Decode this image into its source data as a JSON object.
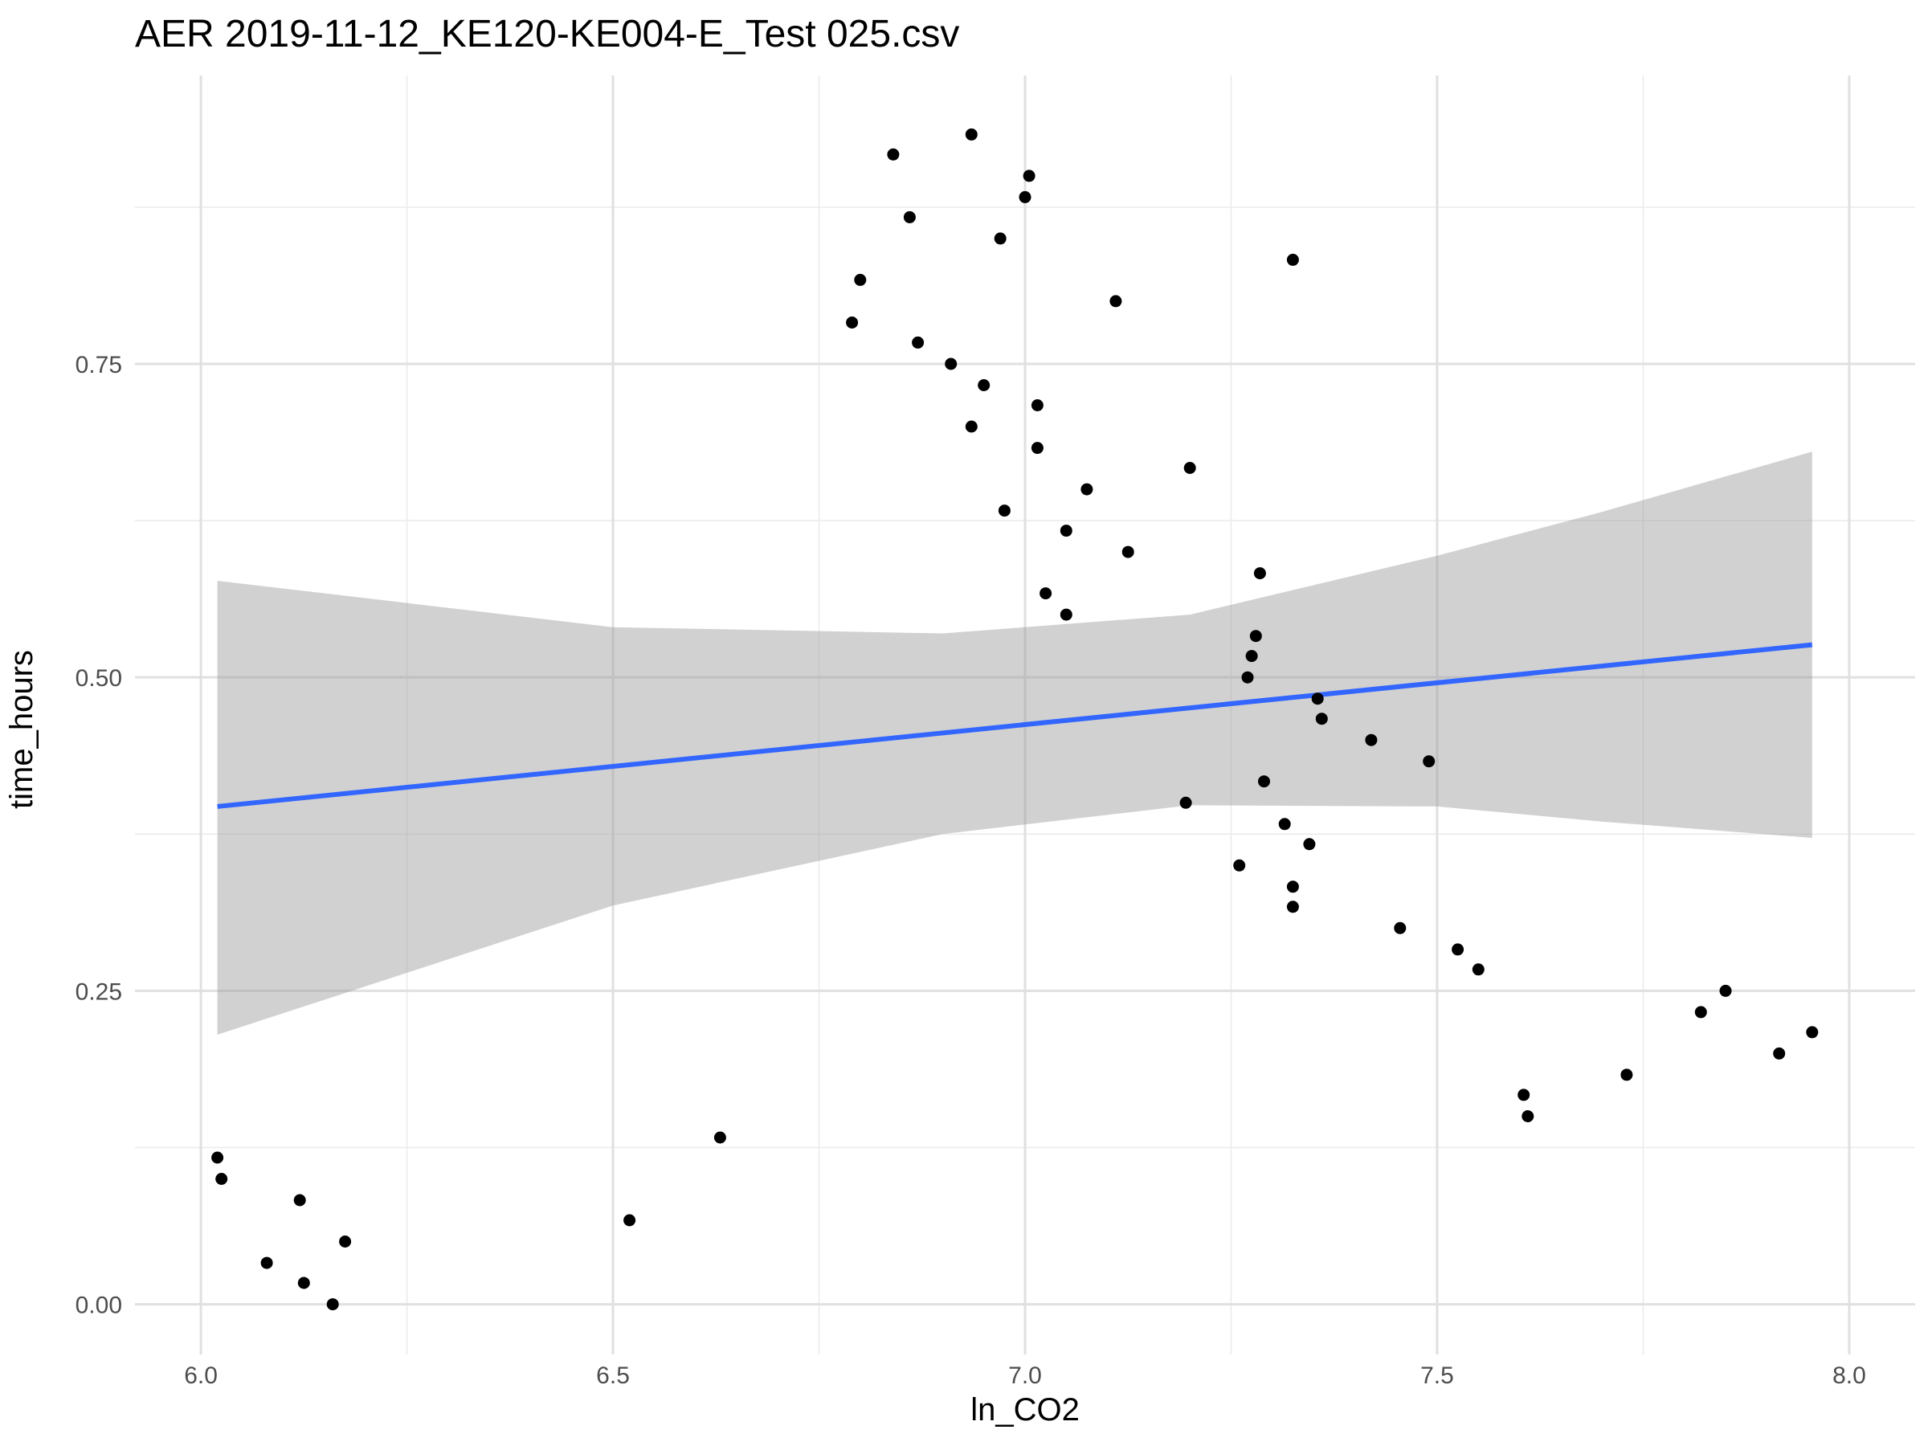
{
  "chart_data": {
    "type": "scatter",
    "title": "AER 2019-11-12_KE120-KE004-E_Test 025.csv",
    "xlabel": "ln_CO2",
    "ylabel": "time_hours",
    "xlim": [
      5.92,
      8.08
    ],
    "ylim": [
      -0.04,
      0.98
    ],
    "x_ticks": [
      6.0,
      6.5,
      7.0,
      7.5,
      8.0
    ],
    "x_tick_labels": [
      "6.0",
      "6.5",
      "7.0",
      "7.5",
      "8.0"
    ],
    "y_ticks": [
      0.0,
      0.25,
      0.5,
      0.75
    ],
    "y_tick_labels": [
      "0.00",
      "0.25",
      "0.50",
      "0.75"
    ],
    "grid": true,
    "points": [
      [
        6.02,
        0.117
      ],
      [
        6.025,
        0.1
      ],
      [
        6.08,
        0.033
      ],
      [
        6.12,
        0.083
      ],
      [
        6.125,
        0.017
      ],
      [
        6.16,
        0.0
      ],
      [
        6.175,
        0.05
      ],
      [
        6.52,
        0.067
      ],
      [
        6.63,
        0.133
      ],
      [
        6.79,
        0.783
      ],
      [
        6.8,
        0.817
      ],
      [
        6.84,
        0.917
      ],
      [
        6.86,
        0.867
      ],
      [
        6.87,
        0.767
      ],
      [
        6.91,
        0.75
      ],
      [
        6.935,
        0.7
      ],
      [
        6.935,
        0.933
      ],
      [
        6.95,
        0.733
      ],
      [
        6.97,
        0.85
      ],
      [
        6.975,
        0.633
      ],
      [
        7.0,
        0.883
      ],
      [
        7.005,
        0.9
      ],
      [
        7.015,
        0.683
      ],
      [
        7.015,
        0.717
      ],
      [
        7.025,
        0.567
      ],
      [
        7.05,
        0.55
      ],
      [
        7.05,
        0.617
      ],
      [
        7.075,
        0.65
      ],
      [
        7.11,
        0.8
      ],
      [
        7.125,
        0.6
      ],
      [
        7.195,
        0.4
      ],
      [
        7.2,
        0.667
      ],
      [
        7.26,
        0.35
      ],
      [
        7.27,
        0.5
      ],
      [
        7.275,
        0.517
      ],
      [
        7.28,
        0.533
      ],
      [
        7.285,
        0.583
      ],
      [
        7.29,
        0.417
      ],
      [
        7.315,
        0.383
      ],
      [
        7.325,
        0.317
      ],
      [
        7.325,
        0.333
      ],
      [
        7.325,
        0.833
      ],
      [
        7.345,
        0.367
      ],
      [
        7.355,
        0.483
      ],
      [
        7.36,
        0.467
      ],
      [
        7.42,
        0.45
      ],
      [
        7.455,
        0.3
      ],
      [
        7.49,
        0.433
      ],
      [
        7.525,
        0.283
      ],
      [
        7.55,
        0.267
      ],
      [
        7.605,
        0.167
      ],
      [
        7.61,
        0.15
      ],
      [
        7.73,
        0.183
      ],
      [
        7.82,
        0.233
      ],
      [
        7.85,
        0.25
      ],
      [
        7.915,
        0.2
      ],
      [
        7.955,
        0.217
      ]
    ],
    "fit_line": {
      "method": "lm",
      "x": [
        6.02,
        7.955
      ],
      "y": [
        0.397,
        0.526
      ],
      "color": "#3366FF"
    },
    "confidence_band": {
      "x": [
        6.02,
        6.5,
        6.9,
        7.2,
        7.5,
        7.7,
        7.955
      ],
      "lower": [
        0.215,
        0.318,
        0.375,
        0.398,
        0.397,
        0.385,
        0.372
      ],
      "upper": [
        0.577,
        0.54,
        0.535,
        0.55,
        0.597,
        0.632,
        0.68
      ],
      "color": "#999999"
    }
  }
}
